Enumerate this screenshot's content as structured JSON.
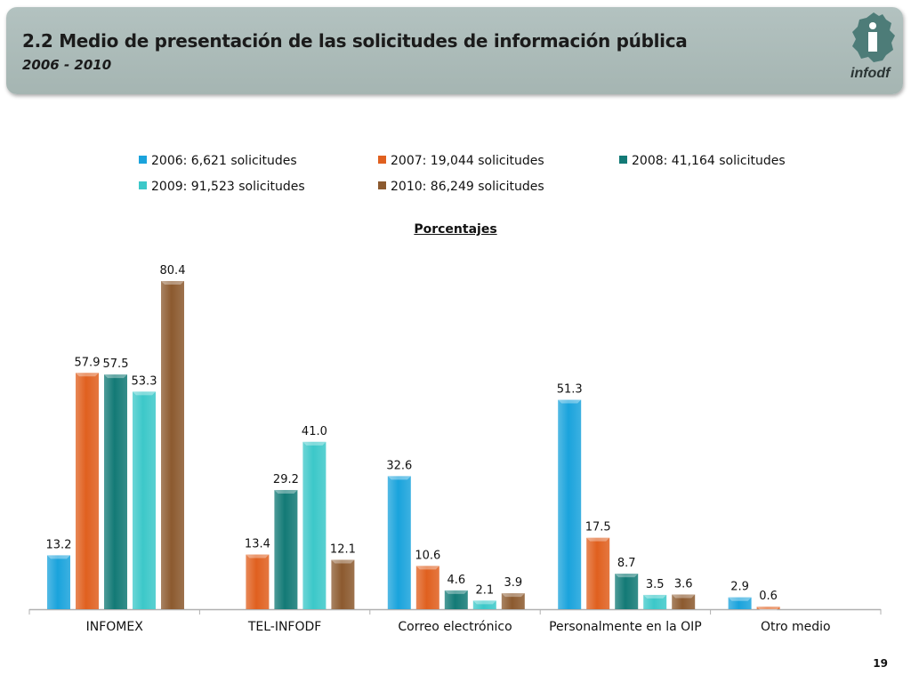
{
  "header": {
    "title": "2.2 Medio de presentación de las solicitudes de información pública",
    "subtitle": "2006 - 2010",
    "logo_text": "infodf"
  },
  "legend": [
    {
      "label": "2006: 6,621 solicitudes",
      "color": "#1aa3dc"
    },
    {
      "label": "2007: 19,044 solicitudes",
      "color": "#e0601f"
    },
    {
      "label": "2008: 41,164 solicitudes",
      "color": "#137a76"
    },
    {
      "label": "2009: 91,523 solicitudes",
      "color": "#3cc8c9"
    },
    {
      "label": "2010: 86,249 solicitudes",
      "color": "#8c5a2f"
    }
  ],
  "chart_data": {
    "type": "bar",
    "title": "Porcentajes",
    "categories": [
      "INFOMEX",
      "TEL-INFODF",
      "Correo electrónico",
      "Personalmente en la OIP",
      "Otro medio"
    ],
    "series": [
      {
        "name": "2006: 6,621 solicitudes",
        "color": "#1aa3dc",
        "values": [
          13.2,
          null,
          32.6,
          51.3,
          2.9
        ]
      },
      {
        "name": "2007: 19,044 solicitudes",
        "color": "#e0601f",
        "values": [
          57.9,
          13.4,
          10.6,
          17.5,
          0.6
        ]
      },
      {
        "name": "2008: 41,164 solicitudes",
        "color": "#137a76",
        "values": [
          57.5,
          29.2,
          4.6,
          8.7,
          null
        ]
      },
      {
        "name": "2009: 91,523 solicitudes",
        "color": "#3cc8c9",
        "values": [
          53.3,
          41.0,
          2.1,
          3.5,
          null
        ]
      },
      {
        "name": "2010: 86,249 solicitudes",
        "color": "#8c5a2f",
        "values": [
          80.4,
          12.1,
          3.9,
          3.6,
          null
        ]
      }
    ],
    "ylim": [
      0,
      80.4
    ],
    "grid": false,
    "legend_position": "top"
  },
  "footer": {
    "page_number": "19"
  }
}
